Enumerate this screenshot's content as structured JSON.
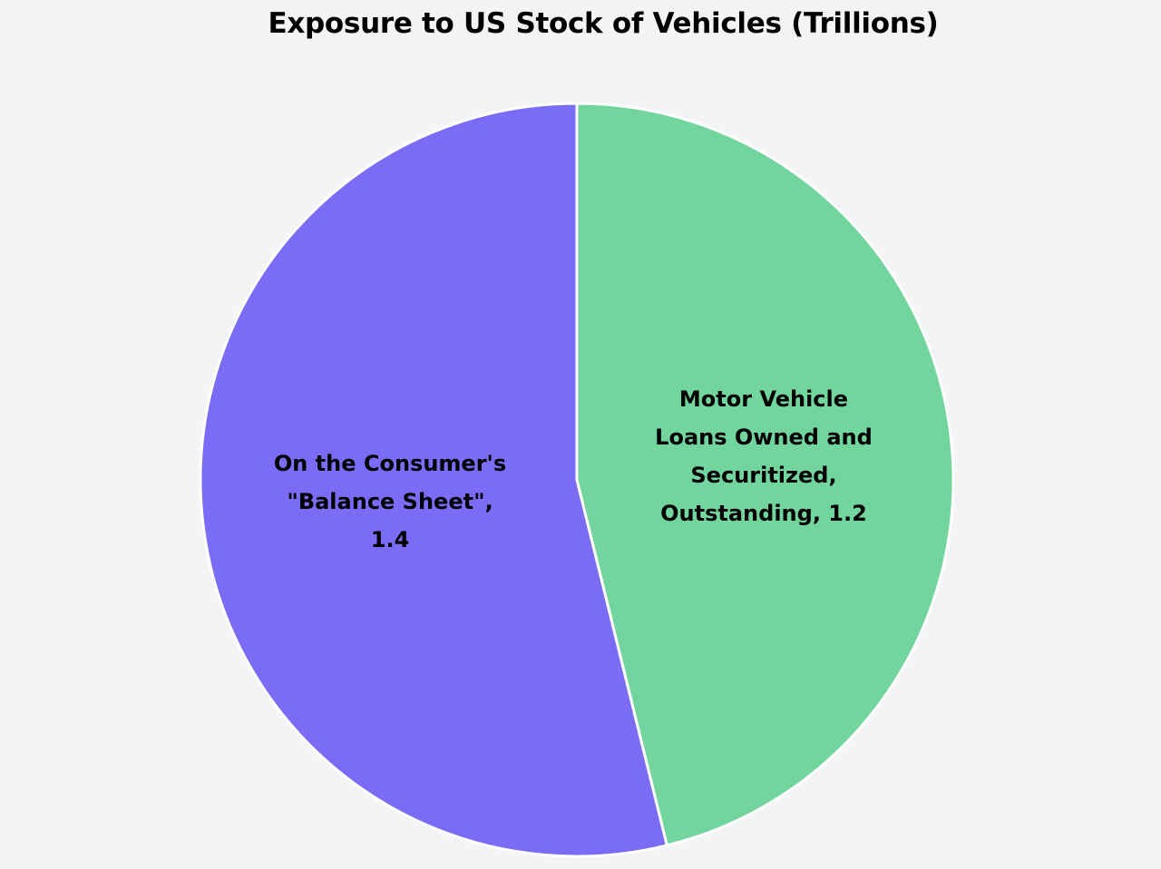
{
  "chart_data": {
    "type": "pie",
    "title": "Exposure to US Stock of Vehicles (Trillions)",
    "unit": "Trillions",
    "slices": [
      {
        "label_lines": [
          "Motor Vehicle",
          "Loans Owned and",
          "Securitized,",
          "Outstanding, 1.2"
        ],
        "name": "Motor Vehicle Loans Owned and Securitized, Outstanding",
        "value": 1.2,
        "color": "#71d59d"
      },
      {
        "label_lines": [
          "On the Consumer's",
          "\"Balance Sheet\",",
          "1.4"
        ],
        "name": "On the Consumer's \"Balance Sheet\"",
        "value": 1.4,
        "color": "#7b6cf6"
      }
    ],
    "start_angle": "12 o'clock",
    "direction": "clockwise",
    "legend": "none",
    "slice_border_color": "#ffffff"
  }
}
